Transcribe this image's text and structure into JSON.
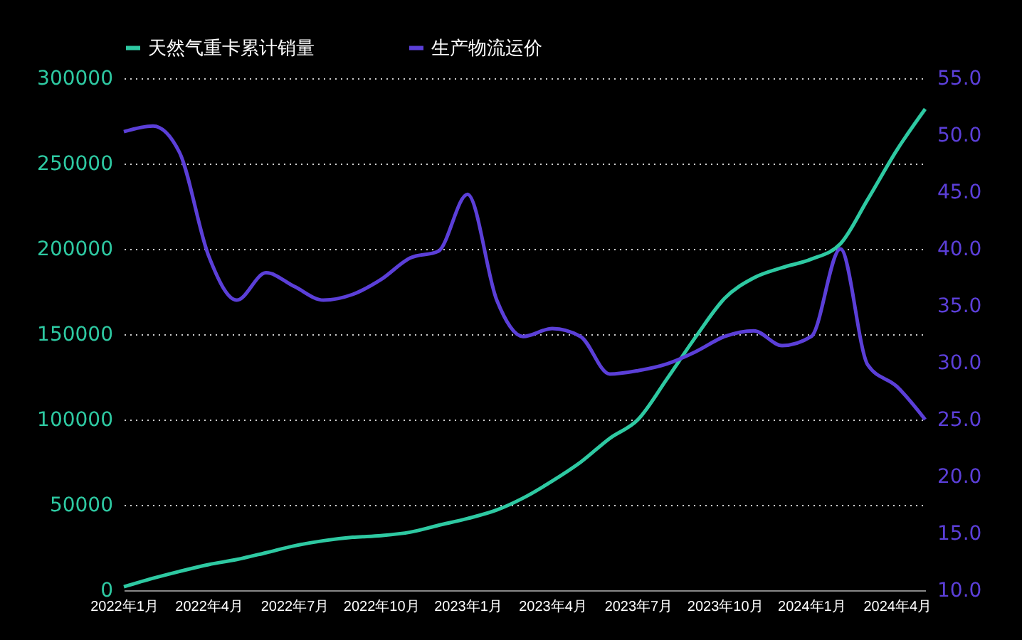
{
  "chart_data": {
    "type": "line",
    "x": [
      "2022-01",
      "2022-02",
      "2022-03",
      "2022-04",
      "2022-05",
      "2022-06",
      "2022-07",
      "2022-08",
      "2022-09",
      "2022-10",
      "2022-11",
      "2022-12",
      "2023-01",
      "2023-02",
      "2023-03",
      "2023-04",
      "2023-05",
      "2023-06",
      "2023-07",
      "2023-08",
      "2023-09",
      "2023-10",
      "2023-11",
      "2023-12",
      "2024-01",
      "2024-02",
      "2024-03",
      "2024-04",
      "2024-05"
    ],
    "series": [
      {
        "name": "天然气重卡累计销量",
        "color": "#2ec9a2",
        "values": [
          2000,
          7000,
          11000,
          15000,
          18000,
          22000,
          26000,
          29000,
          31000,
          32000,
          34000,
          38000,
          42000,
          47000,
          54000,
          64000,
          75000,
          89000,
          100000,
          124000,
          149000,
          171000,
          183000,
          189000,
          194000,
          203000,
          229000,
          258000,
          282000
        ]
      },
      {
        "name": "生产物流运价",
        "color": "#5b3fd8",
        "axis": "y2",
        "values": [
          50.3,
          50.8,
          48.5,
          39.4,
          35.5,
          37.9,
          36.7,
          35.5,
          36.0,
          37.3,
          39.2,
          39.8,
          44.8,
          35.5,
          32.3,
          33.0,
          32.3,
          29.0,
          29.3,
          29.9,
          31.0,
          32.3,
          32.8,
          31.5,
          32.3,
          40.0,
          29.8,
          27.9,
          25.0
        ]
      }
    ],
    "xlim": [
      "2022-01",
      "2024-05"
    ],
    "xticks": [
      {
        "value": "2022-01",
        "label": "2022年1月"
      },
      {
        "value": "2022-04",
        "label": "2022年4月"
      },
      {
        "value": "2022-07",
        "label": "2022年7月"
      },
      {
        "value": "2022-10",
        "label": "2022年10月"
      },
      {
        "value": "2023-01",
        "label": "2023年1月"
      },
      {
        "value": "2023-04",
        "label": "2023年4月"
      },
      {
        "value": "2023-07",
        "label": "2023年7月"
      },
      {
        "value": "2023-10",
        "label": "2023年10月"
      },
      {
        "value": "2024-01",
        "label": "2024年1月"
      },
      {
        "value": "2024-04",
        "label": "2024年4月"
      }
    ],
    "ylim": [
      0,
      300000
    ],
    "yticks": [
      0,
      50000,
      100000,
      150000,
      200000,
      250000,
      300000
    ],
    "y2lim": [
      10,
      55
    ],
    "y2ticks": [
      {
        "value": 10,
        "label": "10.0"
      },
      {
        "value": 15,
        "label": "15.0"
      },
      {
        "value": 20,
        "label": "20.0"
      },
      {
        "value": 25,
        "label": "25.0"
      },
      {
        "value": 30,
        "label": "30.0"
      },
      {
        "value": 35,
        "label": "35.0"
      },
      {
        "value": 40,
        "label": "40.0"
      },
      {
        "value": 45,
        "label": "45.0"
      },
      {
        "value": 50,
        "label": "50.0"
      },
      {
        "value": 55,
        "label": "55.0"
      }
    ],
    "grid": "y",
    "legend": "top",
    "marker": "none",
    "line_style": "solid"
  }
}
